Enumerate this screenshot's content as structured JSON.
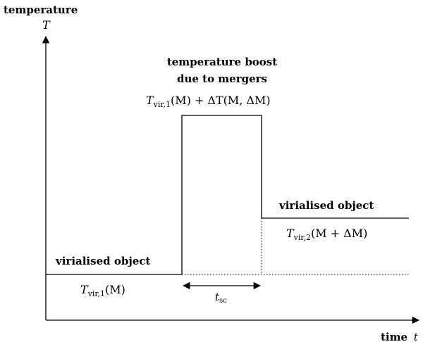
{
  "axes": {
    "y_label_word": "temperature",
    "y_label_symbol": "T",
    "x_label_word": "time",
    "x_label_symbol": "t"
  },
  "boost": {
    "title_line1": "temperature boost",
    "title_line2": "due to mergers",
    "formula_T": "T",
    "formula_sub": "vir,1",
    "formula_rest": "(M) + ΔT(M, ΔM)"
  },
  "left_object": {
    "title": "virialised object",
    "formula_T": "T",
    "formula_sub": "vir,1",
    "formula_rest": "(M)"
  },
  "right_object": {
    "title": "virialised object",
    "formula_T": "T",
    "formula_sub": "vir,2",
    "formula_rest": "(M + ΔM)"
  },
  "interval": {
    "symbol": "t",
    "sub": "sc"
  }
}
